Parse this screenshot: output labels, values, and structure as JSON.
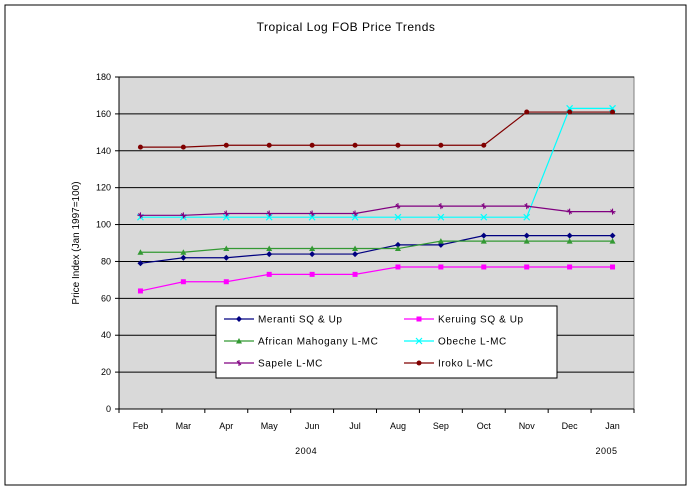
{
  "chart_data": {
    "type": "line",
    "title": "Tropical Log FOB Price Trends",
    "ylabel": "Price Index (Jan 1997=100)",
    "xlabel": "",
    "categories": [
      "Feb",
      "Mar",
      "Apr",
      "May",
      "Jun",
      "Jul",
      "Aug",
      "Sep",
      "Oct",
      "Nov",
      "Dec",
      "Jan"
    ],
    "year_labels": [
      {
        "label": "2004",
        "under": "Jun"
      },
      {
        "label": "2005",
        "under": "Jan"
      }
    ],
    "ylim": [
      0,
      180
    ],
    "yticks": [
      0,
      20,
      40,
      60,
      80,
      100,
      120,
      140,
      160,
      180
    ],
    "grid": true,
    "legend_position": "lower-center",
    "series": [
      {
        "name": "Meranti SQ & Up",
        "color": "#000080",
        "marker": "diamond",
        "values": [
          79,
          82,
          82,
          84,
          84,
          84,
          89,
          89,
          94,
          94,
          94,
          94
        ]
      },
      {
        "name": "Keruing SQ & Up",
        "color": "#FF00FF",
        "marker": "square",
        "values": [
          64,
          69,
          69,
          73,
          73,
          73,
          77,
          77,
          77,
          77,
          77,
          77
        ]
      },
      {
        "name": "African Mahogany L-MC",
        "color": "#339933",
        "marker": "triangle",
        "values": [
          85,
          85,
          87,
          87,
          87,
          87,
          87,
          91,
          91,
          91,
          91,
          91
        ]
      },
      {
        "name": "Obeche L-MC",
        "color": "#00FFFF",
        "marker": "x",
        "values": [
          104,
          104,
          104,
          104,
          104,
          104,
          104,
          104,
          104,
          104,
          163,
          163
        ]
      },
      {
        "name": "Sapele L-MC",
        "color": "#800080",
        "marker": "star",
        "values": [
          105,
          105,
          106,
          106,
          106,
          106,
          110,
          110,
          110,
          110,
          107,
          107
        ]
      },
      {
        "name": "Iroko L-MC",
        "color": "#800000",
        "marker": "circle",
        "values": [
          142,
          142,
          143,
          143,
          143,
          143,
          143,
          143,
          143,
          161,
          161,
          161
        ]
      }
    ]
  }
}
